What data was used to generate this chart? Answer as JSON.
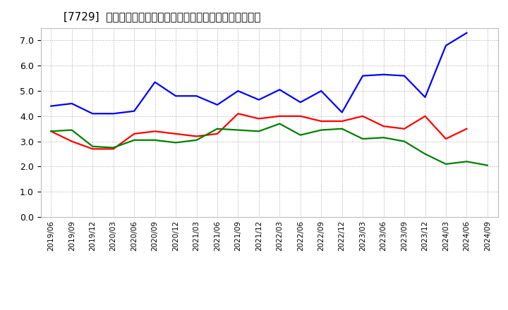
{
  "title": "[7729]  売上債権回転率、買入債務回転率、在庫回転率の推移",
  "x_labels": [
    "2019/06",
    "2019/09",
    "2019/12",
    "2020/03",
    "2020/06",
    "2020/09",
    "2020/12",
    "2021/03",
    "2021/06",
    "2021/09",
    "2021/12",
    "2022/03",
    "2022/06",
    "2022/09",
    "2022/12",
    "2023/03",
    "2023/06",
    "2023/09",
    "2023/12",
    "2024/03",
    "2024/06",
    "2024/09"
  ],
  "receivables": [
    3.4,
    3.0,
    2.7,
    2.7,
    3.3,
    3.4,
    3.3,
    3.2,
    3.3,
    4.1,
    3.9,
    4.0,
    4.0,
    3.8,
    3.8,
    4.0,
    3.6,
    3.5,
    4.0,
    3.1,
    3.5,
    null
  ],
  "payables": [
    4.4,
    4.5,
    4.1,
    4.1,
    4.2,
    5.35,
    4.8,
    4.8,
    4.45,
    5.0,
    4.65,
    5.05,
    4.55,
    5.0,
    4.15,
    5.6,
    5.65,
    5.6,
    4.75,
    6.8,
    7.3,
    null
  ],
  "inventory": [
    3.4,
    3.45,
    2.8,
    2.75,
    3.05,
    3.05,
    2.95,
    3.05,
    3.5,
    3.45,
    3.4,
    3.7,
    3.25,
    3.45,
    3.5,
    3.1,
    3.15,
    3.0,
    2.5,
    2.1,
    2.2,
    2.05
  ],
  "receivables_color": "#ff0000",
  "payables_color": "#0000ff",
  "inventory_color": "#008000",
  "legend_labels": [
    "売上債権回転率",
    "買入債務回転率",
    "在庫回転率"
  ],
  "ylim": [
    0.0,
    7.5
  ],
  "yticks": [
    0.0,
    1.0,
    2.0,
    3.0,
    4.0,
    5.0,
    6.0,
    7.0
  ],
  "background_color": "#ffffff",
  "grid_color": "#aaaaaa",
  "title_fontsize": 11,
  "linewidth": 1.6
}
